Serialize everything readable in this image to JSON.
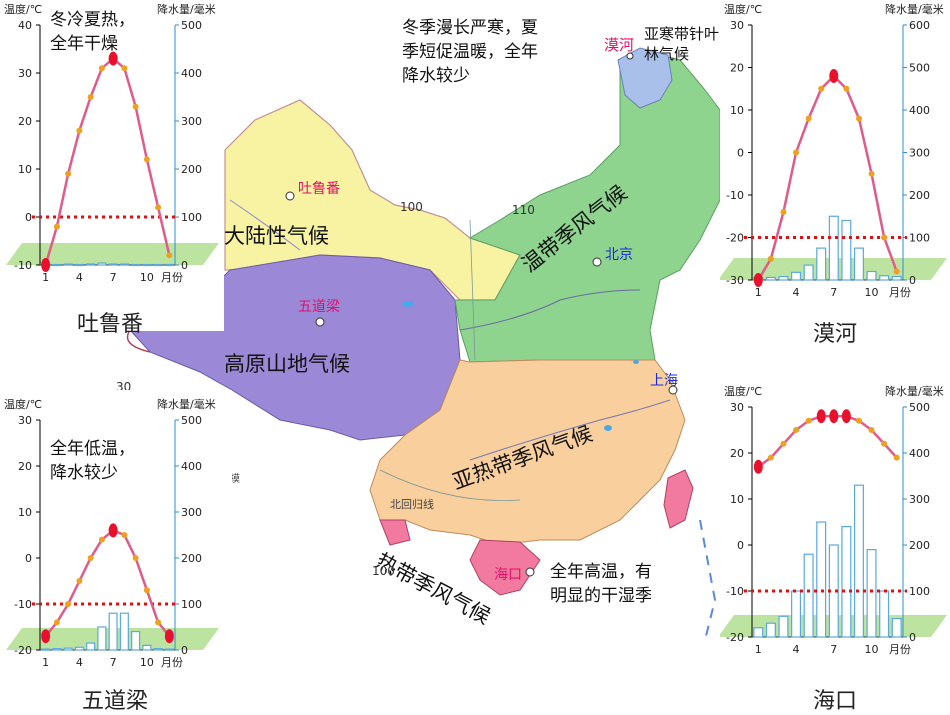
{
  "colors": {
    "continental": "#f7f3a3",
    "plateau": "#9b88d6",
    "temperate_monsoon": "#8ed48f",
    "subtropical_monsoon": "#f8cf9d",
    "tropical_monsoon": "#f27aa0",
    "subarctic": "#a9c1ea",
    "temp_line": "#e05a8a",
    "temp_dot": "#f0a020",
    "extreme_dot": "#e8102a",
    "rain_bar": "#5aa8e0",
    "ground": "#bde3a0",
    "axis_left": "#000000",
    "axis_right": "#2a8fd4",
    "dotted_line": "#e01010"
  },
  "map": {
    "zones": {
      "continental": "大陆性气候",
      "plateau": "高原山地气候",
      "temperate_monsoon": "温带季风气候",
      "subtropical_monsoon": "亚热带季风气候",
      "tropical_monsoon": "热带季风气候",
      "subarctic": "亚寒带针叶林气候"
    },
    "cities": {
      "turpan": "吐鲁番",
      "wudaoliang": "五道梁",
      "beijing": "北京",
      "shanghai": "上海",
      "mohe": "漠河",
      "haikou": "海口"
    },
    "grid_labels": {
      "lon100a": "100",
      "lon110": "110",
      "lat30": "30",
      "lon100b": "100"
    },
    "tropic_label": "北回归线",
    "stray_mark": "摸"
  },
  "notes": {
    "turpan": [
      "冬冷夏热，",
      "全年干燥"
    ],
    "mohe": [
      "冬季漫长严寒，夏",
      "季短促温暖，全年",
      "降水较少"
    ],
    "wudaoliang": [
      "全年低温，",
      "降水较少"
    ],
    "haikou": [
      "全年高温，有",
      "明显的干湿季"
    ]
  },
  "chart_data": [
    {
      "type": "bar",
      "title": "吐鲁番",
      "ylabel": "温度/℃",
      "y2label": "降水量/毫米",
      "x_ticks": [
        "1",
        "4",
        "7",
        "10"
      ],
      "x_unit": "月份",
      "temp_ylim": [
        -10,
        40
      ],
      "temp_ticks": [
        -10,
        0,
        10,
        20,
        30,
        40
      ],
      "precip_ylim": [
        0,
        500
      ],
      "precip_ticks": [
        0,
        100,
        200,
        300,
        400,
        500
      ],
      "months": [
        1,
        2,
        3,
        4,
        5,
        6,
        7,
        8,
        9,
        10,
        11,
        12
      ],
      "temperature": [
        -10,
        -2,
        9,
        18,
        25,
        31,
        33,
        31,
        23,
        12,
        2,
        -8
      ],
      "precipitation": [
        1,
        1,
        2,
        1,
        2,
        4,
        2,
        2,
        1,
        1,
        1,
        1
      ],
      "reference_line_mm": 100
    },
    {
      "type": "bar",
      "title": "漠河",
      "ylabel": "温度/℃",
      "y2label": "降水量/毫米",
      "x_ticks": [
        "1",
        "4",
        "7",
        "10"
      ],
      "x_unit": "月份",
      "temp_ylim": [
        -30,
        30
      ],
      "temp_ticks": [
        -30,
        -20,
        -10,
        0,
        10,
        20,
        30
      ],
      "precip_ylim": [
        0,
        600
      ],
      "precip_ticks": [
        0,
        100,
        200,
        300,
        400,
        500,
        600
      ],
      "months": [
        1,
        2,
        3,
        4,
        5,
        6,
        7,
        8,
        9,
        10,
        11,
        12
      ],
      "temperature": [
        -30,
        -25,
        -14,
        0,
        8,
        15,
        18,
        15,
        8,
        -5,
        -20,
        -28
      ],
      "precipitation": [
        6,
        6,
        8,
        18,
        35,
        75,
        150,
        140,
        75,
        20,
        10,
        8
      ],
      "reference_line_mm": 100
    },
    {
      "type": "bar",
      "title": "五道梁",
      "ylabel": "温度/℃",
      "y2label": "降水量/毫米",
      "x_ticks": [
        "1",
        "4",
        "7",
        "10"
      ],
      "x_unit": "月份",
      "temp_ylim": [
        -20,
        30
      ],
      "temp_ticks": [
        -20,
        -10,
        0,
        10,
        20,
        30
      ],
      "precip_ylim": [
        0,
        500
      ],
      "precip_ticks": [
        0,
        100,
        200,
        300,
        400,
        500
      ],
      "months": [
        1,
        2,
        3,
        4,
        5,
        6,
        7,
        8,
        9,
        10,
        11,
        12
      ],
      "temperature": [
        -17,
        -14,
        -10,
        -5,
        0,
        4,
        6,
        5,
        0,
        -7,
        -14,
        -17
      ],
      "precipitation": [
        2,
        3,
        4,
        6,
        15,
        50,
        80,
        80,
        40,
        10,
        3,
        2
      ],
      "reference_line_mm": 100
    },
    {
      "type": "bar",
      "title": "海口",
      "ylabel": "温度/℃",
      "y2label": "降水量/毫米",
      "x_ticks": [
        "1",
        "4",
        "7",
        "10"
      ],
      "x_unit": "月份",
      "temp_ylim": [
        -20,
        30
      ],
      "temp_ticks": [
        -20,
        -10,
        0,
        10,
        20,
        30
      ],
      "precip_ylim": [
        0,
        500
      ],
      "precip_ticks": [
        0,
        100,
        200,
        300,
        400,
        500
      ],
      "months": [
        1,
        2,
        3,
        4,
        5,
        6,
        7,
        8,
        9,
        10,
        11,
        12
      ],
      "temperature": [
        17,
        19,
        22,
        25,
        27,
        28,
        28,
        28,
        27,
        25,
        22,
        19
      ],
      "precipitation": [
        20,
        30,
        45,
        100,
        180,
        250,
        200,
        240,
        330,
        190,
        100,
        40
      ],
      "reference_line_mm": 100
    }
  ]
}
